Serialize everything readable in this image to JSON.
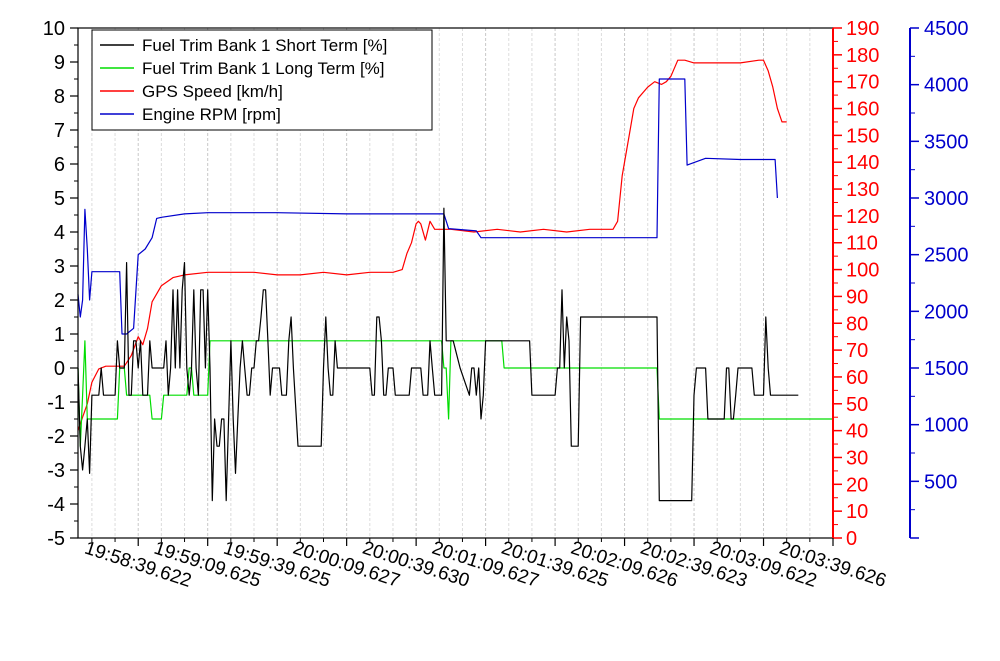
{
  "chart_data": {
    "type": "line",
    "title": "",
    "legend_position": "top-left",
    "grid": "vertical-dashed",
    "x_axis": {
      "ticks": [
        "19:58:39.622",
        "19:59:09.625",
        "19:59:39.625",
        "20:00:09.627",
        "20:00:39.630",
        "20:01:09.627",
        "20:01:39.625",
        "20:02:09.626",
        "20:02:39.623",
        "20:03:09.622",
        "20:03:39.626"
      ],
      "range": [
        -26,
        300
      ]
    },
    "y_left": {
      "range": [
        -5,
        10
      ],
      "ticks": [
        "-5",
        "-4",
        "-3",
        "-2",
        "-1",
        "0",
        "1",
        "2",
        "3",
        "4",
        "5",
        "6",
        "7",
        "8",
        "9",
        "10"
      ],
      "color": "#000000"
    },
    "y_right1": {
      "range": [
        0,
        190
      ],
      "ticks": [
        "0",
        "10",
        "20",
        "30",
        "40",
        "50",
        "60",
        "70",
        "80",
        "90",
        "100",
        "110",
        "120",
        "130",
        "140",
        "150",
        "160",
        "170",
        "180",
        "190"
      ],
      "color": "#ff0000"
    },
    "y_right2": {
      "range": [
        0,
        4500
      ],
      "ticks": [
        "500",
        "1000",
        "1500",
        "2000",
        "2500",
        "3000",
        "3500",
        "4000",
        "4500"
      ],
      "color": "#0000cc"
    },
    "series": [
      {
        "name": "Fuel Trim Bank 1 Short Term [%]",
        "color": "#000000",
        "axis": "left",
        "points": [
          [
            -26,
            0
          ],
          [
            -25,
            -2.3
          ],
          [
            -24,
            -3
          ],
          [
            -23,
            -2.3
          ],
          [
            -22,
            -1.5
          ],
          [
            -21,
            -3.1
          ],
          [
            -20,
            -0.8
          ],
          [
            -17,
            -0.8
          ],
          [
            -16,
            0
          ],
          [
            -15,
            -0.8
          ],
          [
            -10,
            -0.8
          ],
          [
            -9,
            0.8
          ],
          [
            -8,
            0
          ],
          [
            -6,
            0
          ],
          [
            -5,
            3.1
          ],
          [
            -4,
            -0.8
          ],
          [
            -3,
            -0.8
          ],
          [
            -2,
            0.8
          ],
          [
            -1,
            0.8
          ],
          [
            0,
            0
          ],
          [
            1,
            0.8
          ],
          [
            2,
            -0.8
          ],
          [
            4,
            -0.8
          ],
          [
            5,
            0.8
          ],
          [
            6,
            0
          ],
          [
            11,
            0
          ],
          [
            12,
            0.8
          ],
          [
            13,
            -0.8
          ],
          [
            14,
            0
          ],
          [
            15,
            2.3
          ],
          [
            16,
            0
          ],
          [
            17,
            2.3
          ],
          [
            18,
            0
          ],
          [
            19,
            2.3
          ],
          [
            20,
            3.1
          ],
          [
            21,
            0
          ],
          [
            22,
            -0.8
          ],
          [
            23,
            0
          ],
          [
            24,
            2.3
          ],
          [
            25,
            0
          ],
          [
            26,
            -0.8
          ],
          [
            27,
            2.3
          ],
          [
            28,
            2.3
          ],
          [
            29,
            0
          ],
          [
            30,
            2.3
          ],
          [
            31,
            0
          ],
          [
            32,
            -3.9
          ],
          [
            33,
            -1.5
          ],
          [
            34,
            -2.3
          ],
          [
            35,
            -2.3
          ],
          [
            36,
            -1.5
          ],
          [
            37,
            -1.5
          ],
          [
            38,
            -3.9
          ],
          [
            40,
            0.8
          ],
          [
            41,
            -1.5
          ],
          [
            42,
            -3.1
          ],
          [
            43,
            -1.5
          ],
          [
            44,
            0
          ],
          [
            45,
            0.8
          ],
          [
            46,
            0
          ],
          [
            47,
            -0.8
          ],
          [
            48,
            -0.8
          ],
          [
            49,
            0
          ],
          [
            50,
            0
          ],
          [
            51,
            0.8
          ],
          [
            52,
            0.8
          ],
          [
            53,
            1.5
          ],
          [
            54,
            2.3
          ],
          [
            55,
            2.3
          ],
          [
            56,
            0.8
          ],
          [
            57,
            -0.8
          ],
          [
            58,
            0
          ],
          [
            61,
            0
          ],
          [
            62,
            -0.8
          ],
          [
            63,
            -0.8
          ],
          [
            64,
            -0.8
          ],
          [
            65,
            0.8
          ],
          [
            66,
            1.5
          ],
          [
            67,
            0
          ],
          [
            69,
            -2.3
          ],
          [
            79,
            -2.3
          ],
          [
            80,
            0
          ],
          [
            81,
            1.5
          ],
          [
            82,
            0
          ],
          [
            83,
            -0.8
          ],
          [
            84,
            -0.8
          ],
          [
            85,
            0.8
          ],
          [
            86,
            0
          ],
          [
            100,
            0
          ],
          [
            101,
            -0.8
          ],
          [
            102,
            -0.8
          ],
          [
            103,
            1.5
          ],
          [
            104,
            1.5
          ],
          [
            105,
            0.8
          ],
          [
            106,
            -0.8
          ],
          [
            107,
            -0.8
          ],
          [
            108,
            0
          ],
          [
            110,
            0
          ],
          [
            111,
            -0.8
          ],
          [
            117,
            -0.8
          ],
          [
            118,
            0
          ],
          [
            122,
            0
          ],
          [
            123,
            -0.8
          ],
          [
            124,
            -0.8
          ],
          [
            125,
            -0.8
          ],
          [
            126,
            0.8
          ],
          [
            127,
            0
          ],
          [
            128,
            -0.8
          ],
          [
            129,
            -0.8
          ],
          [
            131,
            -0.8
          ],
          [
            132,
            4.7
          ],
          [
            133,
            0.8
          ],
          [
            136,
            0.8
          ],
          [
            139,
            0
          ],
          [
            143,
            -0.8
          ],
          [
            144,
            0
          ],
          [
            145,
            0
          ],
          [
            146,
            -0.8
          ],
          [
            147,
            0
          ],
          [
            148,
            -1.5
          ],
          [
            149,
            -0.8
          ],
          [
            150,
            0.8
          ],
          [
            153,
            0.8
          ],
          [
            169,
            0.8
          ],
          [
            170,
            -0.8
          ],
          [
            180,
            -0.8
          ],
          [
            181,
            0
          ],
          [
            182,
            0
          ],
          [
            183,
            2.3
          ],
          [
            184,
            0
          ],
          [
            185,
            1.5
          ],
          [
            186,
            0.8
          ],
          [
            187,
            -2.3
          ],
          [
            190,
            -2.3
          ],
          [
            191,
            1.5
          ],
          [
            220,
            1.5
          ],
          [
            224,
            1.5
          ],
          [
            225,
            -3.9
          ],
          [
            239,
            -3.9
          ],
          [
            240,
            -0.8
          ],
          [
            241,
            0
          ],
          [
            245,
            0
          ],
          [
            246,
            -1.5
          ],
          [
            253,
            -1.5
          ],
          [
            254,
            0
          ],
          [
            255,
            0
          ],
          [
            256,
            -1.5
          ],
          [
            257,
            -1.5
          ],
          [
            258,
            -0.8
          ],
          [
            259,
            0
          ],
          [
            265,
            0
          ],
          [
            266,
            -0.8
          ],
          [
            270,
            -0.8
          ],
          [
            271,
            1.5
          ],
          [
            272,
            0
          ],
          [
            273,
            -0.8
          ],
          [
            275,
            -0.8
          ],
          [
            285,
            -0.8
          ]
        ]
      },
      {
        "name": "Fuel Trim Bank 1 Long Term [%]",
        "color": "#00dd00",
        "axis": "left",
        "points": [
          [
            -26,
            0
          ],
          [
            -25,
            -2.3
          ],
          [
            -24,
            -0.8
          ],
          [
            -23,
            0.8
          ],
          [
            -22,
            -1.5
          ],
          [
            -21,
            -1.5
          ],
          [
            -20,
            -1.5
          ],
          [
            -9,
            -1.5
          ],
          [
            -8,
            0
          ],
          [
            -6,
            0
          ],
          [
            -5,
            -0.8
          ],
          [
            5,
            -0.8
          ],
          [
            6,
            -1.5
          ],
          [
            10,
            -1.5
          ],
          [
            11,
            -0.8
          ],
          [
            21,
            -0.8
          ],
          [
            22,
            0
          ],
          [
            23,
            0
          ],
          [
            24,
            -0.8
          ],
          [
            30,
            -0.8
          ],
          [
            31,
            0.8
          ],
          [
            35,
            0.8
          ],
          [
            131,
            0.8
          ],
          [
            132,
            0
          ],
          [
            133,
            0
          ],
          [
            134,
            -1.5
          ],
          [
            135,
            0.8
          ],
          [
            157,
            0.8
          ],
          [
            158,
            0
          ],
          [
            224,
            0
          ],
          [
            225,
            -1.5
          ],
          [
            300,
            -1.5
          ]
        ]
      },
      {
        "name": "GPS Speed [km/h]",
        "color": "#ff0000",
        "axis": "right1",
        "points": [
          [
            -26,
            40
          ],
          [
            -24,
            45
          ],
          [
            -22,
            50
          ],
          [
            -20,
            58
          ],
          [
            -17,
            63
          ],
          [
            -14,
            64
          ],
          [
            -12,
            64
          ],
          [
            -9,
            64
          ],
          [
            -6,
            64
          ],
          [
            -3,
            68
          ],
          [
            0,
            75
          ],
          [
            2,
            72
          ],
          [
            4,
            78
          ],
          [
            6,
            88
          ],
          [
            10,
            94
          ],
          [
            15,
            97
          ],
          [
            20,
            98
          ],
          [
            30,
            99
          ],
          [
            40,
            99
          ],
          [
            50,
            99
          ],
          [
            60,
            98
          ],
          [
            70,
            98
          ],
          [
            80,
            99
          ],
          [
            90,
            98
          ],
          [
            100,
            99
          ],
          [
            110,
            99
          ],
          [
            114,
            100
          ],
          [
            116,
            106
          ],
          [
            118,
            110
          ],
          [
            120,
            117
          ],
          [
            121,
            118
          ],
          [
            122,
            117
          ],
          [
            124,
            111
          ],
          [
            126,
            118
          ],
          [
            128,
            115
          ],
          [
            135,
            115
          ],
          [
            145,
            114
          ],
          [
            155,
            115
          ],
          [
            165,
            114
          ],
          [
            175,
            115
          ],
          [
            185,
            114
          ],
          [
            195,
            115
          ],
          [
            205,
            115
          ],
          [
            207,
            118
          ],
          [
            209,
            135
          ],
          [
            212,
            150
          ],
          [
            214,
            160
          ],
          [
            216,
            164
          ],
          [
            220,
            168
          ],
          [
            223,
            170
          ],
          [
            226,
            169
          ],
          [
            228,
            170
          ],
          [
            230,
            172
          ],
          [
            233,
            178
          ],
          [
            236,
            178
          ],
          [
            240,
            177
          ],
          [
            250,
            177
          ],
          [
            260,
            177
          ],
          [
            268,
            178
          ],
          [
            270,
            178
          ],
          [
            272,
            174
          ],
          [
            274,
            168
          ],
          [
            276,
            160
          ],
          [
            278,
            155
          ],
          [
            280,
            155
          ]
        ]
      },
      {
        "name": "Engine RPM [rpm]",
        "color": "#0000cc",
        "axis": "right2",
        "points": [
          [
            -26,
            2150
          ],
          [
            -25,
            1950
          ],
          [
            -24,
            2100
          ],
          [
            -23,
            2900
          ],
          [
            -22,
            2550
          ],
          [
            -21,
            2100
          ],
          [
            -20,
            2350
          ],
          [
            -19,
            2350
          ],
          [
            -8,
            2350
          ],
          [
            -7,
            1800
          ],
          [
            -5,
            1800
          ],
          [
            -2,
            1850
          ],
          [
            0,
            2500
          ],
          [
            3,
            2550
          ],
          [
            6,
            2650
          ],
          [
            8,
            2820
          ],
          [
            10,
            2830
          ],
          [
            20,
            2860
          ],
          [
            30,
            2870
          ],
          [
            60,
            2870
          ],
          [
            90,
            2860
          ],
          [
            132,
            2860
          ],
          [
            134,
            2730
          ],
          [
            146,
            2710
          ],
          [
            148,
            2650
          ],
          [
            156,
            2650
          ],
          [
            220,
            2650
          ],
          [
            224,
            2650
          ],
          [
            225,
            4050
          ],
          [
            236,
            4050
          ],
          [
            237,
            3290
          ],
          [
            245,
            3350
          ],
          [
            260,
            3340
          ],
          [
            265,
            3340
          ],
          [
            275,
            3340
          ],
          [
            276,
            3000
          ]
        ]
      }
    ]
  }
}
